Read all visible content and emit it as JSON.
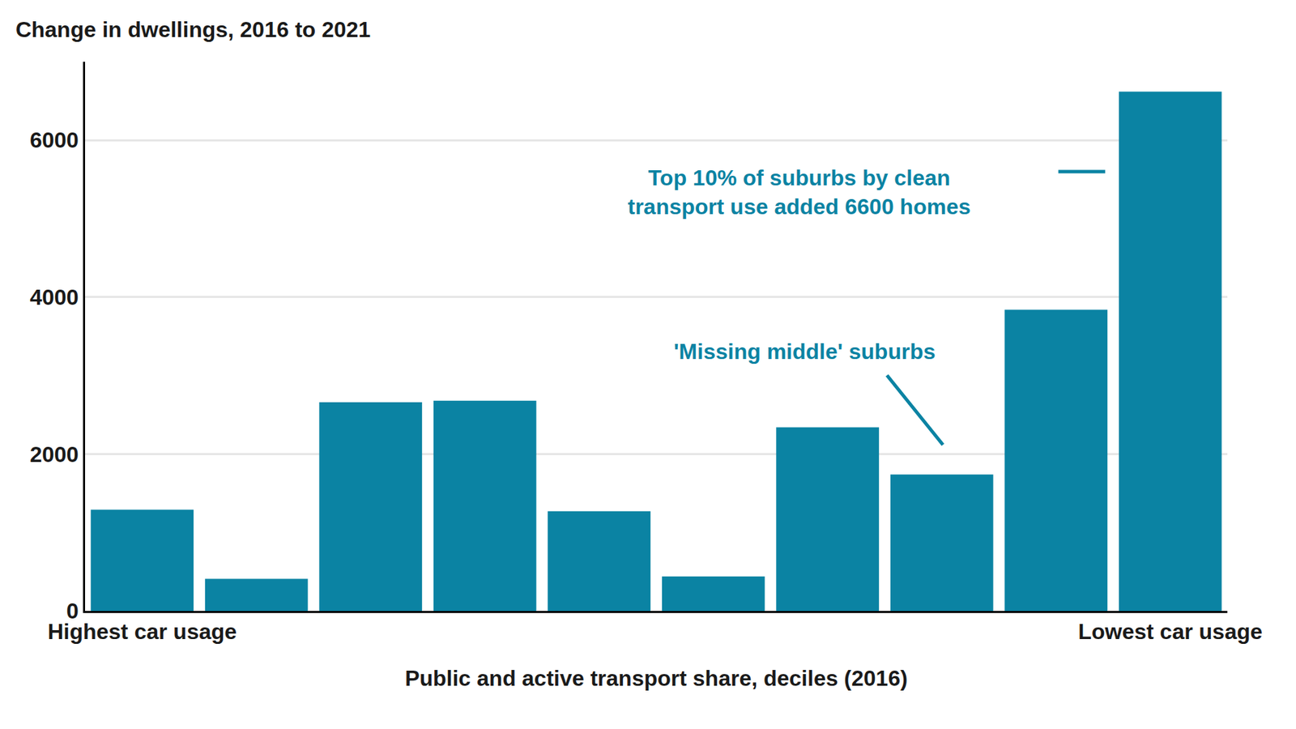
{
  "chart_data": {
    "type": "bar",
    "title": "Change in dwellings, 2016 to 2021",
    "x_label": "Public and active transport share, deciles (2016)",
    "categories": [
      "Highest car usage",
      null,
      null,
      null,
      null,
      null,
      null,
      null,
      null,
      "Lowest car usage"
    ],
    "values": [
      1290,
      410,
      2660,
      2680,
      1270,
      440,
      2340,
      1740,
      3840,
      6620
    ],
    "color": "#0b83a3",
    "ylim": [
      0,
      7000
    ],
    "yticks": [
      0,
      2000,
      4000,
      6000
    ],
    "grid": true,
    "annotations": [
      "Top 10% of suburbs by clean\ntransport use added 6600 homes",
      "'Missing middle' suburbs"
    ]
  }
}
